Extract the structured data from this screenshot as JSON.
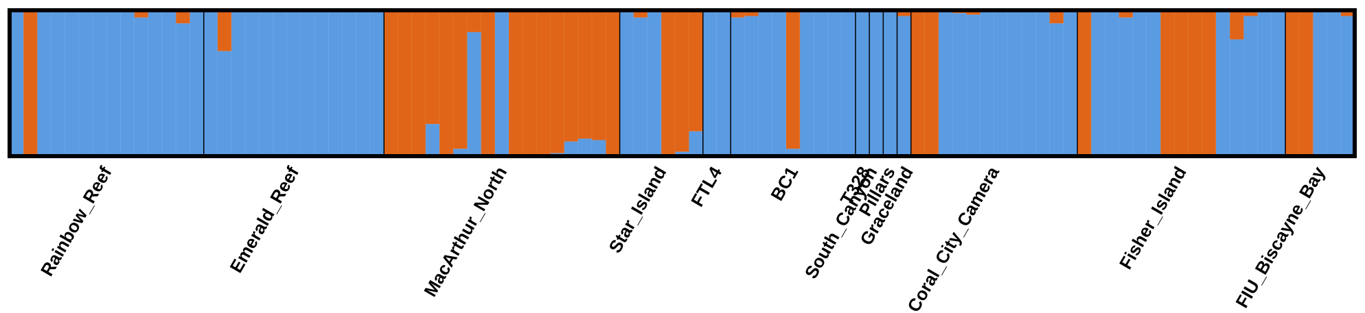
{
  "chart_data": {
    "type": "bar",
    "stacked": true,
    "ylim": [
      0,
      1
    ],
    "grid": false,
    "legend": "none",
    "series": [
      {
        "color": "#5b9be2"
      },
      {
        "color": "#e06518"
      }
    ],
    "populations": [
      {
        "name": "Rainbow_Reef",
        "values": [
          1,
          0,
          1,
          1,
          1,
          1,
          1,
          1,
          1,
          0.95,
          1,
          1,
          0.91,
          1
        ]
      },
      {
        "name": "Emerald_Reef",
        "values": [
          1,
          0.72,
          1,
          1,
          1,
          1,
          1,
          1,
          1,
          1,
          1,
          1,
          1
        ]
      },
      {
        "name": "MacArthur_North",
        "values": [
          0,
          0,
          0,
          0.22,
          0,
          0.05,
          0.85,
          0,
          1,
          0,
          0,
          0,
          0.02,
          0.1,
          0.12,
          0.11,
          0
        ]
      },
      {
        "name": "Star_Island",
        "values": [
          1,
          0.95,
          1,
          0,
          0.03,
          0.17
        ]
      },
      {
        "name": "FTL4",
        "values": [
          1,
          1
        ]
      },
      {
        "name": "BC1",
        "values": [
          0.95,
          0.96,
          1,
          1,
          0.05,
          1,
          1,
          1,
          1
        ]
      },
      {
        "name": "T328",
        "values": [
          1
        ]
      },
      {
        "name": "South_Canyon",
        "values": [
          1
        ]
      },
      {
        "name": "Pillars",
        "values": [
          1
        ]
      },
      {
        "name": "Graceland",
        "values": [
          0.96
        ]
      },
      {
        "name": "Coral_City_Camera",
        "values": [
          0,
          0,
          0.99,
          0.98,
          0.97,
          0.99,
          1,
          1,
          1,
          1,
          0.91,
          1
        ]
      },
      {
        "name": "Fisher_Island",
        "values": [
          0,
          1,
          1,
          0.95,
          1,
          1,
          0,
          0,
          0,
          0,
          1,
          0.8,
          0.96,
          1,
          1
        ]
      },
      {
        "name": "FIU_Biscayne_Bay",
        "values": [
          0,
          0,
          1,
          1,
          0.96
        ]
      }
    ]
  }
}
